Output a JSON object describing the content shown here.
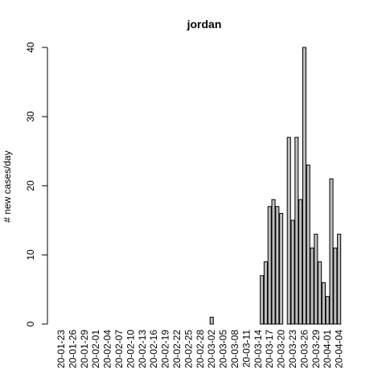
{
  "chart_data": {
    "type": "bar",
    "title": "jordan",
    "xlabel": "",
    "ylabel": "# new cases/day",
    "ylim": [
      0,
      40
    ],
    "yticks": [
      0,
      10,
      20,
      30,
      40
    ],
    "categories": [
      "20-01-23",
      "20-01-24",
      "20-01-25",
      "20-01-26",
      "20-01-27",
      "20-01-28",
      "20-01-29",
      "20-01-30",
      "20-01-31",
      "20-02-01",
      "20-02-02",
      "20-02-03",
      "20-02-04",
      "20-02-05",
      "20-02-06",
      "20-02-07",
      "20-02-08",
      "20-02-09",
      "20-02-10",
      "20-02-11",
      "20-02-12",
      "20-02-13",
      "20-02-14",
      "20-02-15",
      "20-02-16",
      "20-02-17",
      "20-02-18",
      "20-02-19",
      "20-02-20",
      "20-02-21",
      "20-02-22",
      "20-02-23",
      "20-02-24",
      "20-02-25",
      "20-02-26",
      "20-02-27",
      "20-02-28",
      "20-02-29",
      "20-03-01",
      "20-03-02",
      "20-03-03",
      "20-03-04",
      "20-03-05",
      "20-03-06",
      "20-03-07",
      "20-03-08",
      "20-03-09",
      "20-03-10",
      "20-03-11",
      "20-03-12",
      "20-03-13",
      "20-03-14",
      "20-03-15",
      "20-03-16",
      "20-03-17",
      "20-03-18",
      "20-03-19",
      "20-03-20",
      "20-03-21",
      "20-03-22",
      "20-03-23",
      "20-03-24",
      "20-03-25",
      "20-03-26",
      "20-03-27",
      "20-03-28",
      "20-03-29",
      "20-03-30",
      "20-03-31",
      "20-04-01",
      "20-04-02",
      "20-04-03",
      "20-04-04"
    ],
    "x_tick_labels": [
      "20-01-23",
      "20-01-26",
      "20-01-29",
      "20-02-01",
      "20-02-04",
      "20-02-07",
      "20-02-10",
      "20-02-13",
      "20-02-16",
      "20-02-19",
      "20-02-22",
      "20-02-25",
      "20-02-28",
      "20-03-02",
      "20-03-05",
      "20-03-08",
      "20-03-11",
      "20-03-14",
      "20-03-17",
      "20-03-20",
      "20-03-23",
      "20-03-26",
      "20-03-29",
      "20-04-01",
      "20-04-04"
    ],
    "values": [
      0,
      0,
      0,
      0,
      0,
      0,
      0,
      0,
      0,
      0,
      0,
      0,
      0,
      0,
      0,
      0,
      0,
      0,
      0,
      0,
      0,
      0,
      0,
      0,
      0,
      0,
      0,
      0,
      0,
      0,
      0,
      0,
      0,
      0,
      0,
      0,
      0,
      0,
      0,
      1,
      0,
      0,
      0,
      0,
      0,
      0,
      0,
      0,
      0,
      0,
      0,
      0,
      7,
      9,
      17,
      18,
      17,
      16,
      0,
      27,
      15,
      27,
      18,
      40,
      23,
      11,
      13,
      9,
      6,
      4,
      21,
      11,
      13
    ],
    "grid": false,
    "legend": "none"
  }
}
